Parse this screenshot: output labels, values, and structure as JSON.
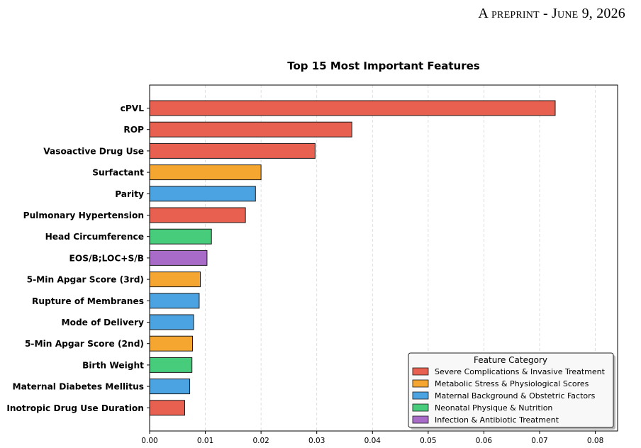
{
  "header": {
    "running_head": "A preprint - June 9, 2026"
  },
  "chart_data": {
    "type": "bar",
    "orientation": "horizontal",
    "title": "Top 15 Most Important Features",
    "xlabel": "",
    "ylabel": "",
    "xlim": [
      0,
      0.084
    ],
    "xticks": [
      "0.00",
      "0.01",
      "0.02",
      "0.03",
      "0.04",
      "0.05",
      "0.06",
      "0.07",
      "0.08"
    ],
    "grid": "vertical dashed",
    "legend_placement": "lower-right",
    "categories": [
      "cPVL",
      "ROP",
      "Vasoactive Drug Use",
      "Surfactant",
      "Parity",
      "Pulmonary Hypertension",
      "Head Circumference",
      "EOS/B;LOC+S/B",
      "5-Min Apgar Score (3rd)",
      "Rupture of Membranes",
      "Mode of Delivery",
      "5-Min Apgar Score (2nd)",
      "Birth Weight",
      "Maternal Diabetes Mellitus",
      "Inotropic Drug Use Duration"
    ],
    "values": [
      0.0728,
      0.0363,
      0.0297,
      0.02,
      0.019,
      0.0172,
      0.0111,
      0.0103,
      0.0091,
      0.0089,
      0.0079,
      0.0077,
      0.0076,
      0.0072,
      0.0063
    ],
    "bar_categories": [
      0,
      0,
      0,
      1,
      2,
      0,
      3,
      4,
      1,
      2,
      2,
      1,
      3,
      2,
      0
    ],
    "legend": {
      "title": "Feature Category",
      "entries": [
        {
          "label": "Severe Complications & Invasive Treatment",
          "color": "#e8604f"
        },
        {
          "label": "Metabolic Stress & Physiological Scores",
          "color": "#f4a630"
        },
        {
          "label": "Maternal Background & Obstetric Factors",
          "color": "#4ba3e2"
        },
        {
          "label": "Neonatal Physique & Nutrition",
          "color": "#47cc7c"
        },
        {
          "label": "Infection & Antibiotic Treatment",
          "color": "#a86cc8"
        }
      ]
    }
  }
}
